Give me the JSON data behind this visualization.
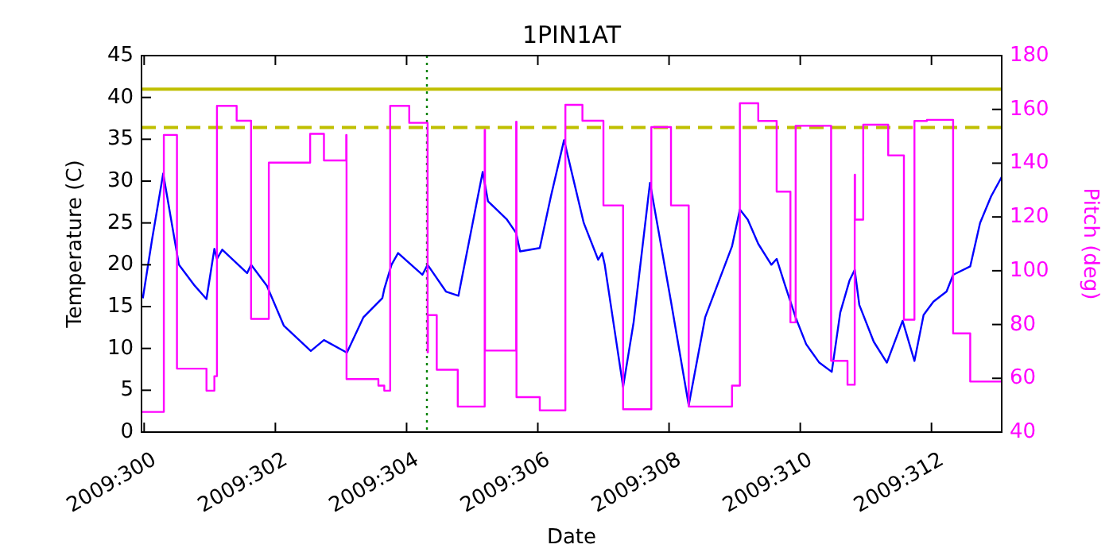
{
  "chart_data": {
    "type": "line",
    "title": "1PIN1AT",
    "xlabel": "Date",
    "ylabel": "Temperature (C)",
    "y2label": "Pitch (deg)",
    "xlim": [
      "2009-10-26T23:02",
      "2009-11-09T01:41"
    ],
    "xticks": [
      {
        "value": "2009-10-27",
        "label": "2009:300"
      },
      {
        "value": "2009-10-29",
        "label": "2009:302"
      },
      {
        "value": "2009-10-31",
        "label": "2009:304"
      },
      {
        "value": "2009-11-02",
        "label": "2009:306"
      },
      {
        "value": "2009-11-04",
        "label": "2009:308"
      },
      {
        "value": "2009-11-06",
        "label": "2009:310"
      },
      {
        "value": "2009-11-08",
        "label": "2009:312"
      }
    ],
    "ylim": [
      0,
      45
    ],
    "yticks": [
      0,
      5,
      10,
      15,
      20,
      25,
      30,
      35,
      40,
      45
    ],
    "y2lim": [
      40,
      180
    ],
    "y2ticks": [
      40,
      60,
      80,
      100,
      120,
      140,
      160,
      180
    ],
    "grid": false,
    "series": [
      {
        "type": "line",
        "color": "#0000ff",
        "x": [
          "2009-10-26T23:31",
          "2009-10-27T02:53",
          "2009-10-27T06:58",
          "2009-10-27T12:43",
          "2009-10-27T18:29",
          "2009-10-27T22:48",
          "2009-10-28T01:41",
          "2009-10-28T02:38",
          "2009-10-28T04:34",
          "2009-10-28T13:41",
          "2009-10-28T15:07",
          "2009-10-28T20:53",
          "2009-10-29T03:07",
          "2009-10-29T12:58",
          "2009-10-29T17:46",
          "2009-10-30T02:10",
          "2009-10-30T08:10",
          "2009-10-30T15:07",
          "2009-10-30T15:50",
          "2009-10-30T18:29",
          "2009-10-30T20:53",
          "2009-10-31T05:46",
          "2009-10-31T07:41",
          "2009-10-31T14:24",
          "2009-10-31T18:58",
          "2009-11-01T03:50",
          "2009-11-01T05:46",
          "2009-11-01T12:43",
          "2009-11-01T16:05",
          "2009-11-01T17:31",
          "2009-11-02T00:43",
          "2009-11-02T04:48",
          "2009-11-02T09:36",
          "2009-11-02T16:48",
          "2009-11-02T22:05",
          "2009-11-02T23:31",
          "2009-11-03T00:29",
          "2009-11-03T07:12",
          "2009-11-03T11:02",
          "2009-11-03T17:02",
          "2009-11-04T00:43",
          "2009-11-04T07:12",
          "2009-11-04T13:12",
          "2009-11-04T23:02",
          "2009-11-05T01:55",
          "2009-11-05T04:48",
          "2009-11-05T08:38",
          "2009-11-05T13:26",
          "2009-11-05T15:22",
          "2009-11-05T18:29",
          "2009-11-05T22:19",
          "2009-11-06T02:10",
          "2009-11-06T06:58",
          "2009-11-06T11:31",
          "2009-11-06T14:38",
          "2009-11-06T18:00",
          "2009-11-06T19:55",
          "2009-11-06T21:36",
          "2009-11-07T02:53",
          "2009-11-07T07:41",
          "2009-11-07T13:26",
          "2009-11-07T17:46",
          "2009-11-07T21:07",
          "2009-11-08T00:43",
          "2009-11-08T05:31",
          "2009-11-08T07:55",
          "2009-11-08T14:10",
          "2009-11-08T17:46",
          "2009-11-08T21:50",
          "2009-11-09T01:41"
        ],
        "values": [
          16,
          23,
          30.9,
          20,
          17.5,
          15.9,
          21.9,
          20.7,
          21.8,
          19,
          20,
          17.5,
          12.7,
          9.7,
          11,
          9.5,
          13.7,
          16,
          17.1,
          20,
          21.4,
          18.8,
          20,
          16.8,
          16.3,
          31.1,
          27.6,
          25.4,
          23.8,
          21.6,
          22,
          28.2,
          34.9,
          25,
          20.6,
          21.4,
          20,
          5.4,
          13.1,
          29.8,
          15.6,
          3.2,
          13.7,
          22.2,
          26.6,
          25.4,
          22.5,
          20,
          20.7,
          17.5,
          13.7,
          10.5,
          8.3,
          7.2,
          14.3,
          18.1,
          19.4,
          15.2,
          10.8,
          8.3,
          13.3,
          8.5,
          14,
          15.6,
          16.8,
          18.8,
          19.8,
          25,
          28.2,
          30.5
        ]
      },
      {
        "type": "step",
        "axis": "y2",
        "color": "#ff00ff",
        "x": [
          "2009-10-26T23:02",
          "2009-10-27T07:12",
          "2009-10-27T12:00",
          "2009-10-27T22:48",
          "2009-10-28T01:41",
          "2009-10-28T02:38",
          "2009-10-28T09:50",
          "2009-10-28T15:07",
          "2009-10-28T21:36",
          "2009-10-29T12:43",
          "2009-10-29T17:46",
          "2009-10-30T01:55",
          "2009-10-30T02:02",
          "2009-10-30T13:41",
          "2009-10-30T15:50",
          "2009-10-30T18:00",
          "2009-10-31T00:58",
          "2009-10-31T07:41",
          "2009-10-31T07:48",
          "2009-10-31T11:02",
          "2009-10-31T18:43",
          "2009-11-01T04:34",
          "2009-11-01T04:41",
          "2009-11-01T16:05",
          "2009-11-01T16:12",
          "2009-11-02T00:43",
          "2009-11-02T10:05",
          "2009-11-02T16:19",
          "2009-11-03T00:00",
          "2009-11-03T07:12",
          "2009-11-03T17:31",
          "2009-11-04T00:43",
          "2009-11-04T07:12",
          "2009-11-04T23:02",
          "2009-11-05T01:55",
          "2009-11-05T08:38",
          "2009-11-05T15:22",
          "2009-11-05T20:24",
          "2009-11-05T22:19",
          "2009-11-06T11:17",
          "2009-11-06T17:17",
          "2009-11-06T19:55",
          "2009-11-06T20:02",
          "2009-11-06T23:02",
          "2009-11-07T08:10",
          "2009-11-07T13:55",
          "2009-11-07T17:46",
          "2009-11-07T22:19",
          "2009-11-08T07:55",
          "2009-11-08T14:10",
          "2009-11-09T01:41"
        ],
        "values": [
          47.5,
          150.5,
          63.6,
          55.4,
          60.8,
          161.3,
          155.8,
          82.1,
          140.2,
          150.9,
          141,
          150.5,
          59.7,
          57.3,
          55.4,
          161.3,
          155,
          69.7,
          83.5,
          63.2,
          49.5,
          152.4,
          70.3,
          155.4,
          53,
          48.1,
          161.7,
          155.8,
          124.3,
          48.5,
          153.4,
          124.3,
          49.5,
          57.3,
          162.3,
          155.7,
          129.4,
          80.8,
          153.9,
          66.5,
          57.6,
          135.7,
          119,
          154.3,
          142.9,
          81.8,
          155.7,
          156.1,
          76.7,
          58.8,
          59.2
        ]
      }
    ],
    "ref_lines": [
      {
        "axis": "y",
        "value": 41,
        "color": "#bfbf00",
        "line_style": "solid"
      },
      {
        "axis": "y",
        "value": 36.4,
        "color": "#bfbf00",
        "line_style": "dashed"
      },
      {
        "axis": "x",
        "value": "2009-10-31T07:26",
        "color": "#008000",
        "line_style": "dotted"
      }
    ]
  }
}
